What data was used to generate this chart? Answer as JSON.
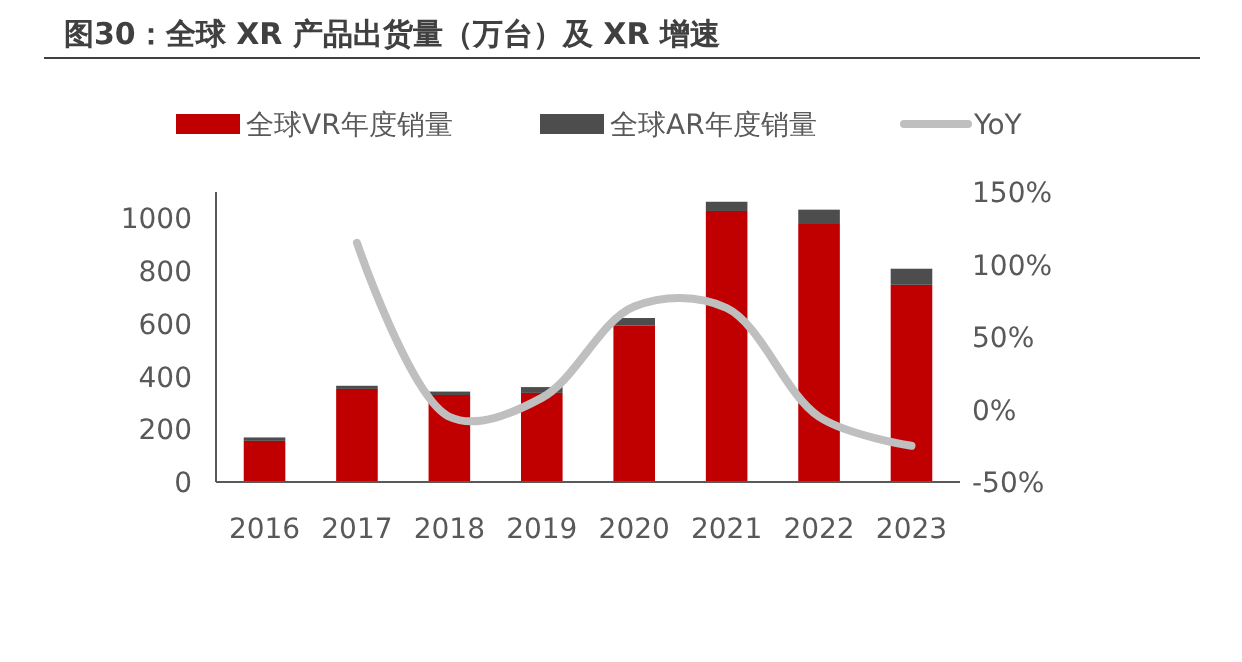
{
  "chart_data": {
    "type": "bar",
    "title": "图30：全球 XR 产品出货量（万台）及 XR 增速",
    "categories": [
      "2016",
      "2017",
      "2018",
      "2019",
      "2020",
      "2021",
      "2022",
      "2023"
    ],
    "stacked": true,
    "series": [
      {
        "name": "全球VR年度销量",
        "color": "#c00000",
        "values": [
          156,
          353,
          330,
          338,
          594,
          1028,
          982,
          748
        ]
      },
      {
        "name": "全球AR年度销量",
        "color": "#4d4d4d",
        "values": [
          13,
          12,
          13,
          22,
          28,
          35,
          51,
          61
        ]
      },
      {
        "name": "YoY",
        "type": "line",
        "axis": "y2",
        "color": "#bfbfbf",
        "values": [
          null,
          115,
          -5,
          8,
          71,
          70,
          -5,
          -25
        ]
      }
    ],
    "ylim": [
      0,
      1100
    ],
    "yticks": [
      0,
      200,
      400,
      600,
      800,
      1000
    ],
    "y2lim": [
      -50,
      150
    ],
    "y2ticks": [
      {
        "value": -50,
        "label": "-50%"
      },
      {
        "value": 0,
        "label": "0%"
      },
      {
        "value": 50,
        "label": "50%"
      },
      {
        "value": 100,
        "label": "100%"
      },
      {
        "value": 150,
        "label": "150%"
      }
    ],
    "legend": "top",
    "grid": false
  }
}
